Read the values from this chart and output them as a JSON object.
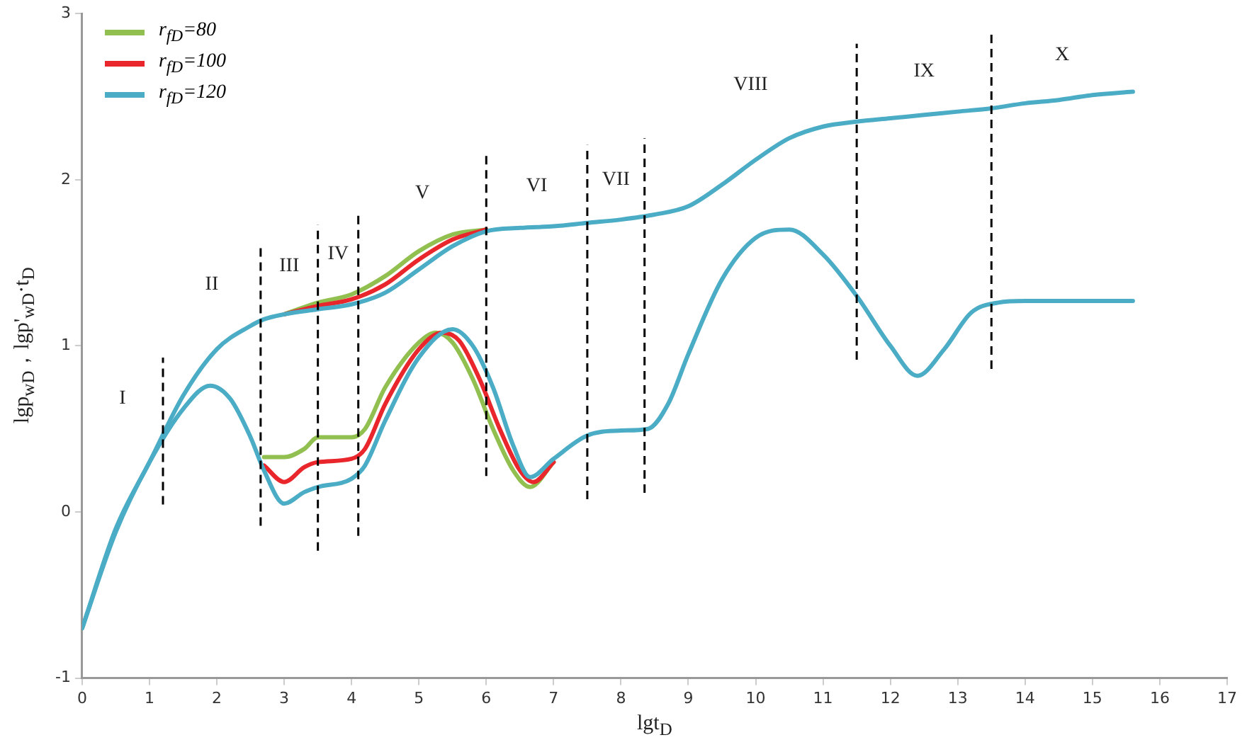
{
  "chart_data": {
    "type": "line",
    "xlabel": "lgt$_{D}$",
    "ylabel": "lgp$_{wD}$，lgp'$_{wD}$·t$_{D}$",
    "xlim": [
      0,
      17
    ],
    "xticks": [
      0,
      1,
      2,
      3,
      4,
      5,
      6,
      7,
      8,
      9,
      10,
      11,
      12,
      13,
      14,
      15,
      16,
      17
    ],
    "ylim": [
      -1,
      3
    ],
    "yticks": [
      -1,
      0,
      1,
      2,
      3
    ],
    "grid": false,
    "legend": "top left",
    "marker": "none",
    "line_style": "solid",
    "series": [
      {
        "name": "r$_{fD}$=80",
        "color": "#92c050",
        "x": [
          3,
          3.5,
          4,
          4.5,
          5,
          5.5,
          6
        ],
        "values": [
          1.19,
          1.26,
          1.31,
          1.42,
          1.57,
          1.67,
          1.7
        ]
      },
      {
        "color": "#92c050",
        "x": [
          2.7,
          3,
          3.3,
          3.5,
          4,
          4.2,
          4.5,
          5,
          5.25,
          5.5,
          5.8,
          6.1,
          6.4,
          6.65,
          7
        ],
        "values": [
          0.33,
          0.33,
          0.38,
          0.45,
          0.45,
          0.5,
          0.75,
          1.02,
          1.08,
          1.02,
          0.8,
          0.5,
          0.25,
          0.15,
          0.3
        ]
      },
      {
        "name": "r$_{fD}$=100",
        "color": "#e8262b",
        "x": [
          3,
          3.5,
          4,
          4.5,
          5,
          5.5,
          6
        ],
        "values": [
          1.19,
          1.24,
          1.28,
          1.37,
          1.52,
          1.64,
          1.7
        ]
      },
      {
        "color": "#e8262b",
        "x": [
          2.7,
          3,
          3.3,
          3.5,
          4,
          4.2,
          4.5,
          5,
          5.35,
          5.6,
          5.9,
          6.2,
          6.5,
          6.7,
          7
        ],
        "values": [
          0.28,
          0.18,
          0.27,
          0.3,
          0.32,
          0.38,
          0.65,
          0.98,
          1.08,
          1.03,
          0.8,
          0.5,
          0.25,
          0.18,
          0.3
        ]
      },
      {
        "name": "r$_{fD}$=120",
        "color": "#4bacc6",
        "x": [
          0,
          0.5,
          1,
          1.5,
          2,
          2.5,
          2.7,
          3,
          3.5,
          4,
          4.5,
          5,
          5.5,
          6,
          6.5,
          7,
          7.5,
          8,
          8.5,
          9,
          9.5,
          10,
          10.5,
          11,
          11.5,
          12,
          12.5,
          13,
          13.5,
          14,
          14.5,
          15,
          15.6
        ],
        "values": [
          -0.7,
          -0.1,
          0.3,
          0.7,
          0.98,
          1.12,
          1.16,
          1.19,
          1.22,
          1.25,
          1.32,
          1.46,
          1.6,
          1.69,
          1.71,
          1.72,
          1.74,
          1.76,
          1.79,
          1.84,
          1.97,
          2.12,
          2.25,
          2.32,
          2.35,
          2.37,
          2.39,
          2.41,
          2.43,
          2.46,
          2.48,
          2.51,
          2.53
        ]
      },
      {
        "color": "#4bacc6",
        "x": [
          0,
          0.5,
          1,
          1.5,
          1.9,
          2.2,
          2.5,
          2.7,
          3,
          3.3,
          3.5,
          4,
          4.2,
          4.5,
          5,
          5.5,
          5.8,
          6.1,
          6.4,
          6.65,
          7,
          7.5,
          8,
          8.4,
          8.7,
          9,
          9.5,
          10,
          10.5,
          11,
          11.5,
          12,
          12.4,
          12.8,
          13.2,
          13.6,
          14,
          15,
          15.6
        ],
        "values": [
          -0.7,
          -0.12,
          0.3,
          0.62,
          0.76,
          0.68,
          0.45,
          0.25,
          0.05,
          0.12,
          0.15,
          0.2,
          0.28,
          0.55,
          0.93,
          1.1,
          1.0,
          0.75,
          0.4,
          0.21,
          0.32,
          0.46,
          0.49,
          0.5,
          0.65,
          0.95,
          1.4,
          1.65,
          1.7,
          1.55,
          1.3,
          1.0,
          0.82,
          0.98,
          1.2,
          1.26,
          1.27,
          1.27,
          1.27
        ]
      }
    ],
    "ref_lines": [
      {
        "axis": "x",
        "value": 1.2,
        "line_style": "dashed",
        "color": "#000000"
      },
      {
        "axis": "x",
        "value": 2.65,
        "line_style": "dashed",
        "color": "#000000"
      },
      {
        "axis": "x",
        "value": 3.5,
        "line_style": "dashed",
        "color": "#000000"
      },
      {
        "axis": "x",
        "value": 4.1,
        "line_style": "dashed",
        "color": "#000000"
      },
      {
        "axis": "x",
        "value": 6.0,
        "line_style": "dashed",
        "color": "#000000"
      },
      {
        "axis": "x",
        "value": 7.5,
        "line_style": "dashed",
        "color": "#000000"
      },
      {
        "axis": "x",
        "value": 8.35,
        "line_style": "dashed",
        "color": "#000000"
      },
      {
        "axis": "x",
        "value": 11.5,
        "line_style": "dashed",
        "color": "#000000"
      },
      {
        "axis": "x",
        "value": 13.5,
        "line_style": "dashed",
        "color": "#000000"
      }
    ],
    "annotations": [
      "I",
      "II",
      "III",
      "IV",
      "V",
      "VI",
      "VII",
      "VIII",
      "IX",
      "X"
    ]
  }
}
